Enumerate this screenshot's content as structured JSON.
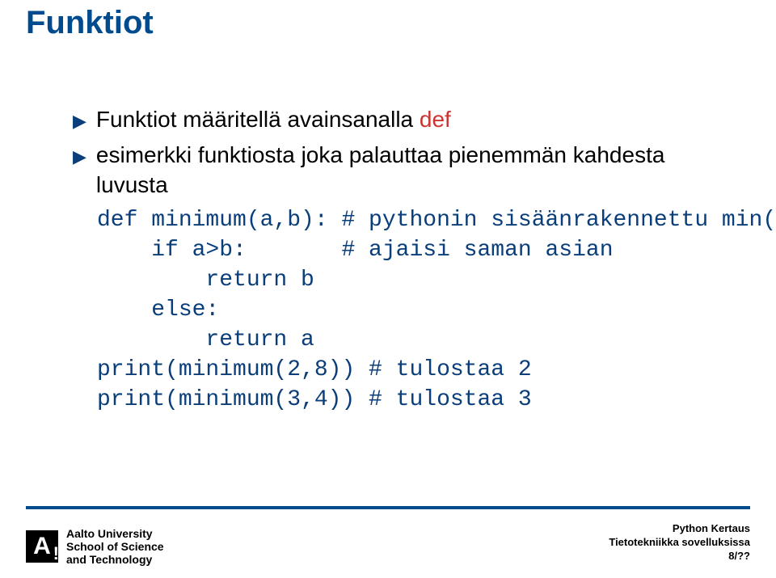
{
  "title": "Funktiot",
  "bullets": [
    {
      "pre": "Funktiot määritellä avainsanalla ",
      "kw": "def",
      "post": ""
    },
    {
      "pre": "esimerkki funktiosta joka palauttaa pienemmän kahdesta luvusta",
      "kw": "",
      "post": ""
    }
  ],
  "code": "def minimum(a,b): # pythonin sisäänrakennettu min()\n    if a>b:       # ajaisi saman asian\n        return b\n    else:\n        return a\nprint(minimum(2,8)) # tulostaa 2\nprint(minimum(3,4)) # tulostaa 3",
  "logo": {
    "letter": "A",
    "excl": "!",
    "line1": "Aalto University",
    "line2": "School of Science",
    "line3": "and Technology"
  },
  "footer_right": {
    "line1": "Python Kertaus",
    "line2": "Tietotekniikka sovelluksissa",
    "line3": "8/??"
  },
  "colors": {
    "title_color": "#004b8d",
    "code_color": "#0a3e7a",
    "kw_color": "#cc3333",
    "divider_color": "#004b8d",
    "background": "#ffffff"
  }
}
